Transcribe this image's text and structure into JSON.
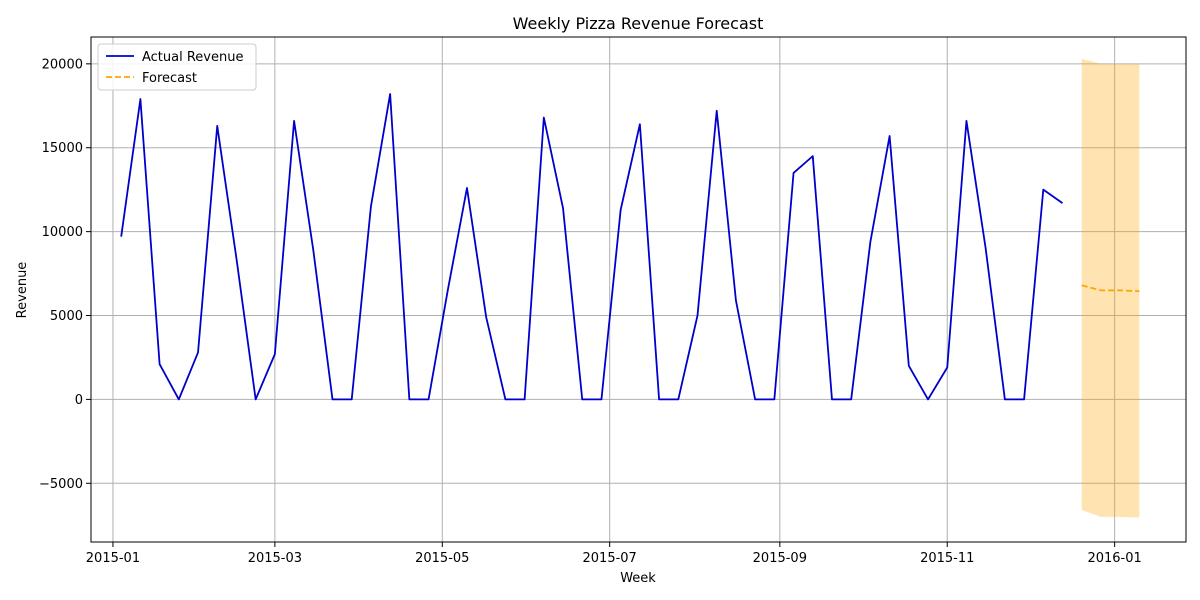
{
  "chart_data": {
    "type": "line",
    "title": "Weekly Pizza Revenue Forecast",
    "xlabel": "Week",
    "ylabel": "Revenue",
    "xlim": [
      "2014-12-24",
      "2016-01-27"
    ],
    "ylim": [
      -8500,
      21600
    ],
    "x_ticks": [
      "2015-01",
      "2015-03",
      "2015-05",
      "2015-07",
      "2015-09",
      "2015-11",
      "2016-01"
    ],
    "x_tick_dates": [
      "2015-01-01",
      "2015-03-01",
      "2015-05-01",
      "2015-07-01",
      "2015-09-01",
      "2015-11-01",
      "2016-01-01"
    ],
    "y_ticks": [
      -5000,
      0,
      5000,
      10000,
      15000,
      20000
    ],
    "y_tick_labels": [
      "−5000",
      "0",
      "5000",
      "10000",
      "15000",
      "20000"
    ],
    "grid": true,
    "legend_position": "top-left",
    "colors": {
      "actual": "#0000cc",
      "forecast": "#ffa500",
      "band": "#ffa500",
      "grid": "#b0b0b0"
    },
    "series": [
      {
        "name": "Actual Revenue",
        "style": "solid",
        "x": [
          "2015-01-04",
          "2015-01-11",
          "2015-01-18",
          "2015-01-25",
          "2015-02-01",
          "2015-02-08",
          "2015-02-15",
          "2015-02-22",
          "2015-03-01",
          "2015-03-08",
          "2015-03-15",
          "2015-03-22",
          "2015-03-29",
          "2015-04-05",
          "2015-04-12",
          "2015-04-19",
          "2015-04-26",
          "2015-05-03",
          "2015-05-10",
          "2015-05-17",
          "2015-05-24",
          "2015-05-31",
          "2015-06-07",
          "2015-06-14",
          "2015-06-21",
          "2015-06-28",
          "2015-07-05",
          "2015-07-12",
          "2015-07-19",
          "2015-07-26",
          "2015-08-02",
          "2015-08-09",
          "2015-08-16",
          "2015-08-23",
          "2015-08-30",
          "2015-09-06",
          "2015-09-13",
          "2015-09-20",
          "2015-09-27",
          "2015-10-04",
          "2015-10-11",
          "2015-10-18",
          "2015-10-25",
          "2015-11-01",
          "2015-11-08",
          "2015-11-15",
          "2015-11-22",
          "2015-11-29",
          "2015-12-06",
          "2015-12-13"
        ],
        "values": [
          9700,
          17900,
          2100,
          0,
          2800,
          16300,
          8400,
          0,
          2700,
          16600,
          8900,
          0,
          0,
          11500,
          18200,
          0,
          0,
          6500,
          12600,
          4900,
          0,
          0,
          16800,
          11400,
          0,
          0,
          11300,
          16400,
          0,
          0,
          5000,
          17200,
          5900,
          0,
          0,
          13500,
          14500,
          0,
          0,
          9400,
          15700,
          2000,
          0,
          1900,
          16600,
          9000,
          0,
          0,
          12500,
          11700
        ]
      },
      {
        "name": "Forecast",
        "style": "dashed",
        "x": [
          "2015-12-20",
          "2015-12-27",
          "2016-01-03",
          "2016-01-10"
        ],
        "values": [
          6800,
          6500,
          6500,
          6450
        ]
      }
    ],
    "confidence_band": {
      "x": [
        "2015-12-20",
        "2015-12-27",
        "2016-01-03",
        "2016-01-10"
      ],
      "upper": [
        20300,
        20000,
        20000,
        20000
      ],
      "lower": [
        -6600,
        -7000,
        -7000,
        -7050
      ]
    }
  }
}
